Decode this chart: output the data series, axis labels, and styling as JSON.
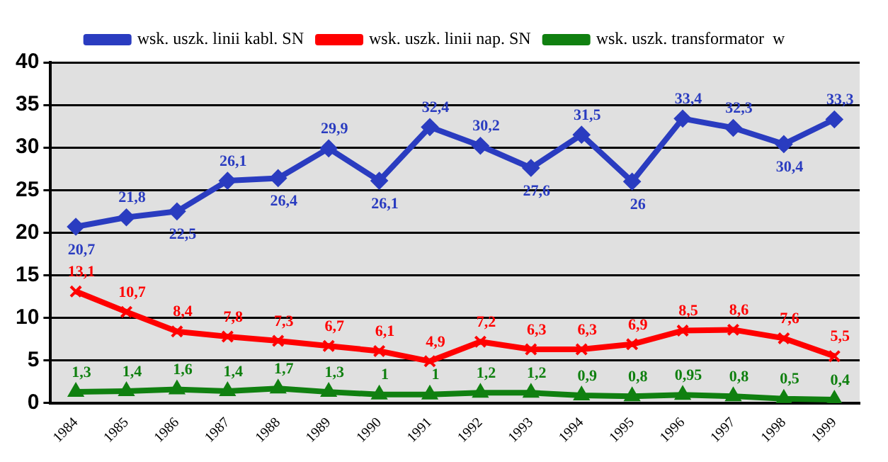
{
  "chart_data": {
    "type": "line",
    "categories": [
      "1984",
      "1985",
      "1986",
      "1987",
      "1988",
      "1989",
      "1990",
      "1991",
      "1992",
      "1993",
      "1994",
      "1995",
      "1996",
      "1997",
      "1998",
      "1999"
    ],
    "series": [
      {
        "name": "wsk. uszk. linii kabl. SN",
        "color": "#2a3cc0",
        "marker": "diamond",
        "values": [
          20.7,
          21.8,
          22.5,
          26.1,
          26.4,
          29.9,
          26.1,
          32.4,
          30.2,
          27.6,
          31.5,
          26,
          33.4,
          32.3,
          30.4,
          33.3
        ],
        "value_labels": [
          "20,7",
          "21,8",
          "22,5",
          "26,1",
          "26,4",
          "29,9",
          "26,1",
          "32,4",
          "30,2",
          "27,6",
          "31,5",
          "26",
          "33,4",
          "32,3",
          "30,4",
          "33,3"
        ]
      },
      {
        "name": "wsk. uszk. linii nap. SN",
        "color": "#ff0000",
        "marker": "cross",
        "values": [
          13.1,
          10.7,
          8.4,
          7.8,
          7.3,
          6.7,
          6.1,
          4.9,
          7.2,
          6.3,
          6.3,
          6.9,
          8.5,
          8.6,
          7.6,
          5.5
        ],
        "value_labels": [
          "13,1",
          "10,7",
          "8,4",
          "7,8",
          "7,3",
          "6,7",
          "6,1",
          "4,9",
          "7,2",
          "6,3",
          "6,3",
          "6,9",
          "8,5",
          "8,6",
          "7,6",
          "5,5"
        ]
      },
      {
        "name": "wsk. uszk. transformator  w",
        "color": "#108010",
        "marker": "triangle",
        "values": [
          1.3,
          1.4,
          1.6,
          1.4,
          1.7,
          1.3,
          1,
          1,
          1.2,
          1.2,
          0.9,
          0.8,
          0.95,
          0.8,
          0.5,
          0.4
        ],
        "value_labels": [
          "1,3",
          "1,4",
          "1,6",
          "1,4",
          "1,7",
          "1,3",
          "1",
          "1",
          "1,2",
          "1,2",
          "0,9",
          "0,8",
          "0,95",
          "0,8",
          "0,5",
          "0,4"
        ]
      }
    ],
    "ylim": [
      0,
      40
    ],
    "yticks": [
      0,
      5,
      10,
      15,
      20,
      25,
      30,
      35,
      40
    ],
    "grid": "y",
    "legend": "top"
  }
}
